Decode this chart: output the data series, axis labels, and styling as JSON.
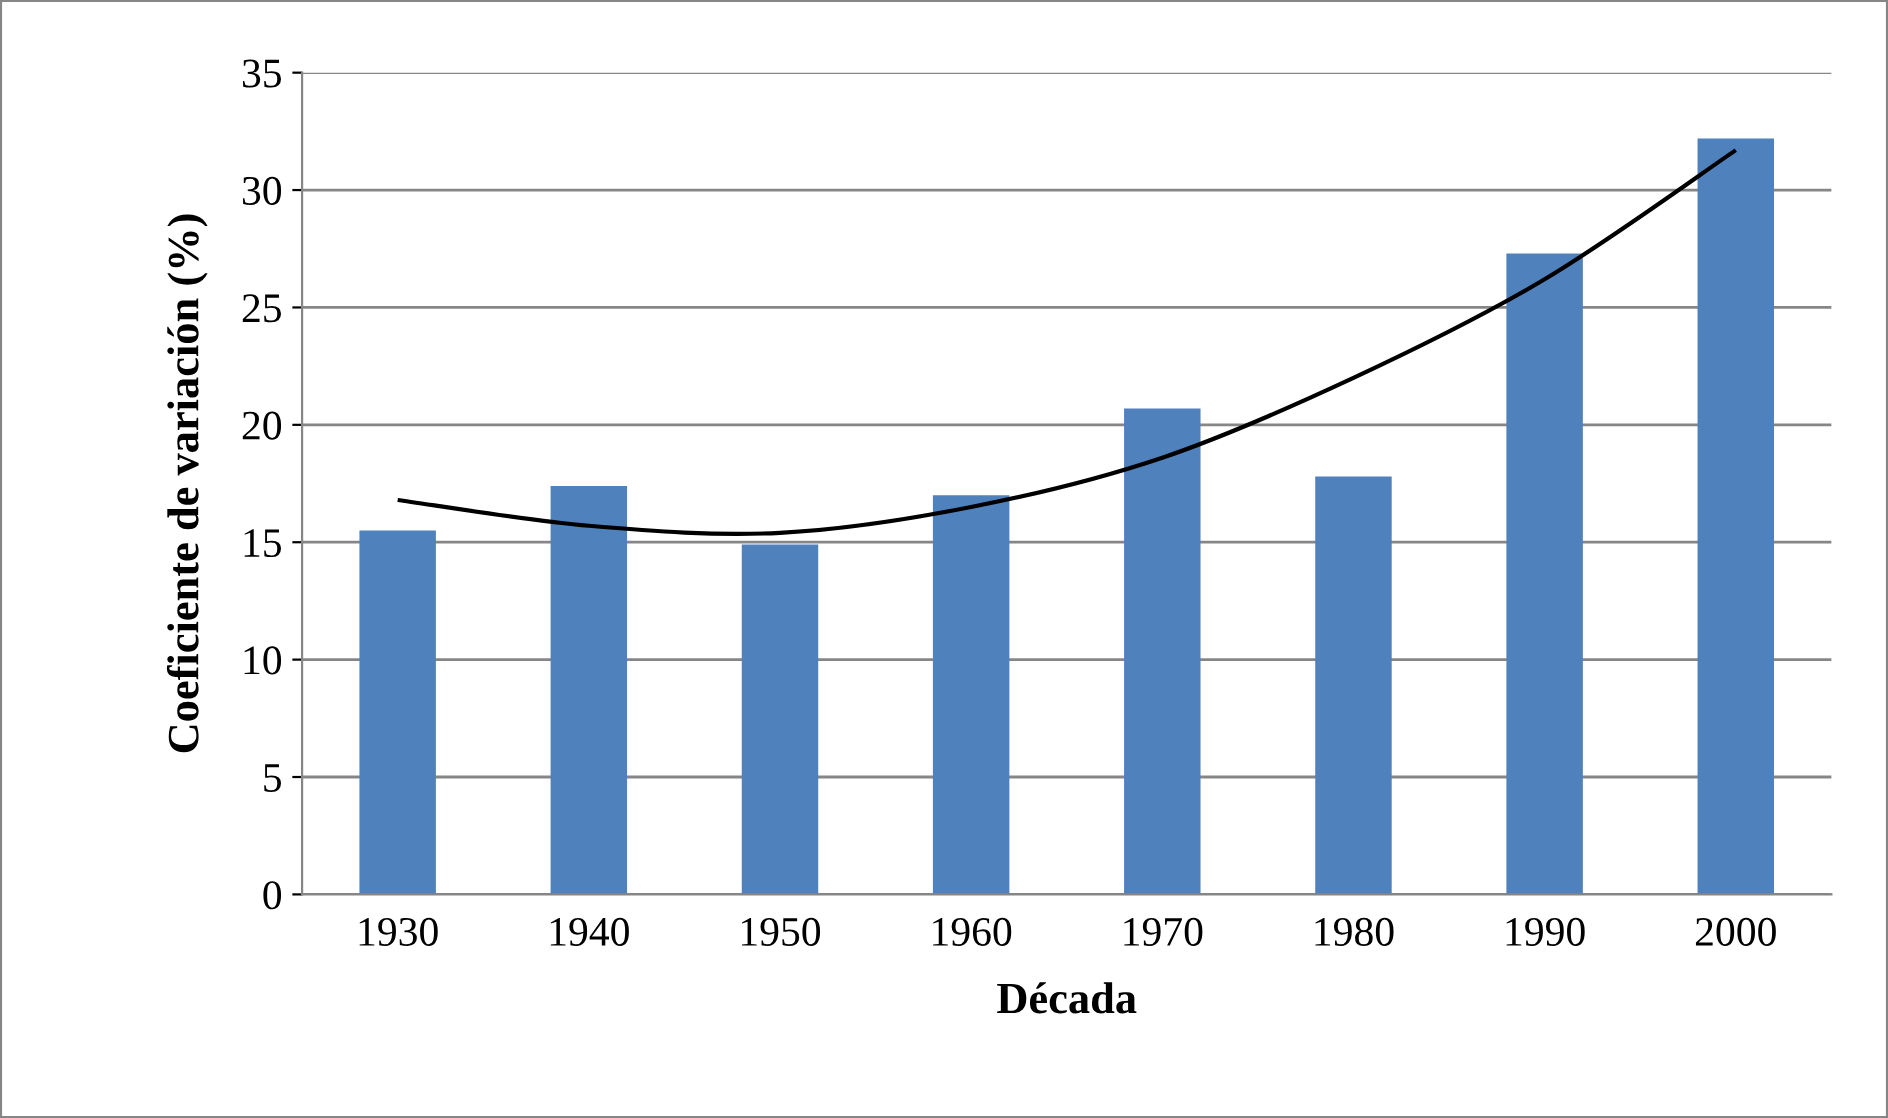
{
  "chart_data": {
    "type": "bar",
    "xlabel": "Década",
    "ylabel": "Coeficiente de variación (%)",
    "categories": [
      "1930",
      "1940",
      "1950",
      "1960",
      "1970",
      "1980",
      "1990",
      "2000"
    ],
    "series": [
      {
        "color": "#4f81bd",
        "values": [
          15.5,
          17.4,
          14.9,
          17.0,
          20.7,
          17.8,
          27.3,
          32.2
        ]
      },
      {
        "type": "line",
        "color": "#000000",
        "values": [
          16.8,
          15.7,
          15.4,
          16.5,
          18.6,
          22.0,
          26.2,
          31.7
        ]
      }
    ],
    "ylim": [
      0,
      35
    ],
    "yticks": [
      0,
      5,
      10,
      15,
      20,
      25,
      30,
      35
    ],
    "grid": "y",
    "legend": false
  }
}
